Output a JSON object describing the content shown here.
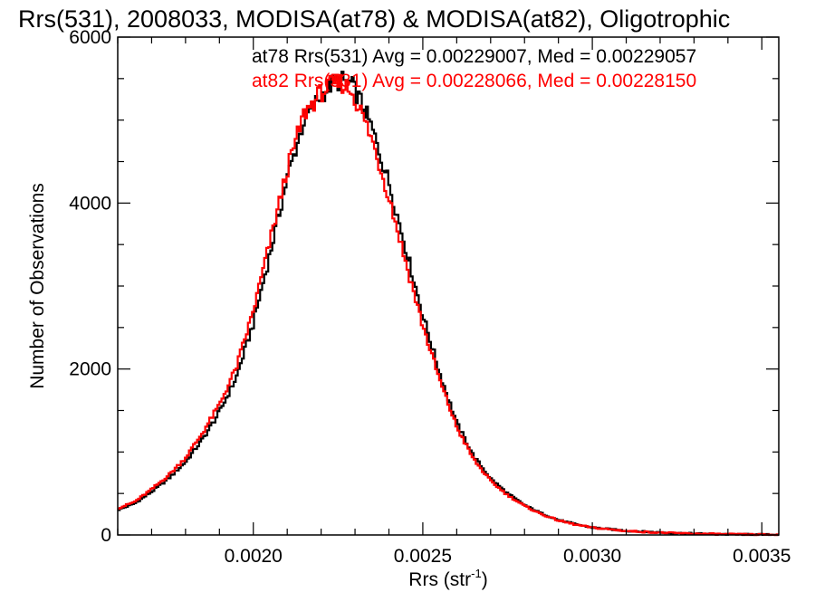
{
  "chart_data": {
    "type": "line",
    "title": "Rrs(531), 2008033, MODISA(at78) & MODISA(at82), Oligotrophic",
    "xlabel_main": "Rrs (str",
    "xlabel_sup": "-1",
    "xlabel_close": ")",
    "ylabel": "Number of Observations",
    "xlim": [
      0.0016,
      0.00355
    ],
    "ylim": [
      0,
      6000
    ],
    "xticks": [
      {
        "value": 0.002,
        "label": "0.0020"
      },
      {
        "value": 0.0025,
        "label": "0.0025"
      },
      {
        "value": 0.003,
        "label": "0.0030"
      },
      {
        "value": 0.0035,
        "label": "0.0035"
      }
    ],
    "yticks": [
      {
        "value": 0,
        "label": "0"
      },
      {
        "value": 2000,
        "label": "2000"
      },
      {
        "value": 4000,
        "label": "4000"
      },
      {
        "value": 6000,
        "label": "6000"
      }
    ],
    "grid": false,
    "legend_position": "top-right",
    "series": [
      {
        "name": "at78",
        "color": "#000000",
        "annotation": "at78 Rrs(531) Avg = 0.00229007, Med = 0.00229057",
        "x": [
          0.0016,
          0.00165,
          0.0017,
          0.00175,
          0.0018,
          0.00185,
          0.0019,
          0.00195,
          0.002,
          0.00205,
          0.0021,
          0.00215,
          0.0022,
          0.00223,
          0.00226,
          0.00229,
          0.00232,
          0.00235,
          0.0024,
          0.00245,
          0.0025,
          0.00255,
          0.0026,
          0.00265,
          0.0027,
          0.00275,
          0.0028,
          0.00285,
          0.0029,
          0.00295,
          0.003,
          0.0031,
          0.0032,
          0.0033,
          0.0034,
          0.0035,
          0.00355
        ],
        "y": [
          300,
          380,
          520,
          680,
          880,
          1150,
          1480,
          1900,
          2550,
          3400,
          4300,
          5000,
          5300,
          5430,
          5480,
          5430,
          5200,
          4900,
          4250,
          3450,
          2650,
          1950,
          1350,
          950,
          680,
          500,
          360,
          260,
          180,
          130,
          90,
          50,
          30,
          16,
          8,
          4,
          3
        ]
      },
      {
        "name": "at82",
        "color": "#ff0000",
        "annotation": "at82 Rrs(531) Avg = 0.00228066, Med = 0.00228150",
        "x": [
          0.0016,
          0.00165,
          0.0017,
          0.00175,
          0.0018,
          0.00185,
          0.0019,
          0.00195,
          0.002,
          0.00205,
          0.0021,
          0.00215,
          0.0022,
          0.00223,
          0.00226,
          0.00229,
          0.00232,
          0.00235,
          0.0024,
          0.00245,
          0.0025,
          0.00255,
          0.0026,
          0.00265,
          0.0027,
          0.00275,
          0.0028,
          0.00285,
          0.0029,
          0.00295,
          0.003,
          0.0031,
          0.0032,
          0.0033,
          0.0034,
          0.0035,
          0.00355
        ],
        "y": [
          320,
          400,
          550,
          720,
          930,
          1230,
          1570,
          2020,
          2700,
          3550,
          4400,
          5080,
          5330,
          5420,
          5450,
          5350,
          5080,
          4760,
          4080,
          3280,
          2520,
          1860,
          1300,
          910,
          650,
          480,
          350,
          250,
          175,
          125,
          88,
          48,
          28,
          15,
          8,
          4,
          3
        ]
      }
    ]
  }
}
